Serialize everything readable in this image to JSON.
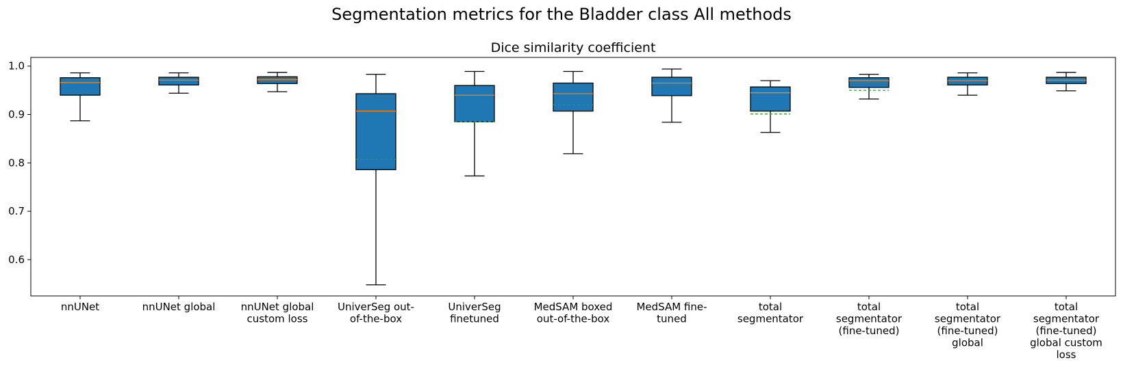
{
  "chart_data": {
    "type": "box",
    "suptitle": "Segmentation metrics for the Bladder class All methods",
    "title": "Dice similarity coefficient",
    "xlabel": "",
    "ylabel": "",
    "ylim": [
      0.525,
      1.018
    ],
    "yticks": [
      "0.6",
      "0.7",
      "0.8",
      "0.9",
      "1.0"
    ],
    "grid": false,
    "colors": {
      "box_fill": "#1f77b4",
      "median": "#ff7f0e",
      "mean": "#2ca02c",
      "line": "#000000"
    },
    "categories": [
      {
        "lines": [
          "nnUNet"
        ],
        "whisker_low": 0.887,
        "q1": 0.94,
        "median": 0.966,
        "q3": 0.976,
        "whisker_high": 0.986,
        "mean": null
      },
      {
        "lines": [
          "nnUNet global"
        ],
        "whisker_low": 0.944,
        "q1": 0.961,
        "median": 0.971,
        "q3": 0.977,
        "whisker_high": 0.986,
        "mean": null
      },
      {
        "lines": [
          "nnUNet global",
          "custom loss"
        ],
        "whisker_low": 0.947,
        "q1": 0.964,
        "median": 0.972,
        "q3": 0.978,
        "whisker_high": 0.987,
        "mean": null
      },
      {
        "lines": [
          "UniverSeg out-",
          "of-the-box"
        ],
        "whisker_low": 0.548,
        "q1": 0.786,
        "median": 0.907,
        "q3": 0.943,
        "whisker_high": 0.983,
        "mean": 0.807
      },
      {
        "lines": [
          "UniverSeg",
          "finetuned"
        ],
        "whisker_low": 0.773,
        "q1": 0.885,
        "median": 0.94,
        "q3": 0.96,
        "whisker_high": 0.989,
        "mean": 0.885
      },
      {
        "lines": [
          "MedSAM boxed",
          "out-of-the-box"
        ],
        "whisker_low": 0.819,
        "q1": 0.907,
        "median": 0.943,
        "q3": 0.965,
        "whisker_high": 0.989,
        "mean": 0.92
      },
      {
        "lines": [
          "MedSAM fine-",
          "tuned"
        ],
        "whisker_low": 0.884,
        "q1": 0.939,
        "median": 0.965,
        "q3": 0.977,
        "whisker_high": 0.994,
        "mean": null
      },
      {
        "lines": [
          "total",
          "segmentator"
        ],
        "whisker_low": 0.863,
        "q1": 0.907,
        "median": 0.945,
        "q3": 0.957,
        "whisker_high": 0.97,
        "mean": 0.901
      },
      {
        "lines": [
          "total",
          "segmentator",
          "(fine-tuned)"
        ],
        "whisker_low": 0.932,
        "q1": 0.956,
        "median": 0.97,
        "q3": 0.976,
        "whisker_high": 0.983,
        "mean": 0.95
      },
      {
        "lines": [
          "total",
          "segmentator",
          "(fine-tuned)",
          "global"
        ],
        "whisker_low": 0.94,
        "q1": 0.961,
        "median": 0.97,
        "q3": 0.977,
        "whisker_high": 0.986,
        "mean": null
      },
      {
        "lines": [
          "total",
          "segmentator",
          "(fine-tuned)",
          "global custom",
          "loss"
        ],
        "whisker_low": 0.949,
        "q1": 0.964,
        "median": 0.971,
        "q3": 0.977,
        "whisker_high": 0.987,
        "mean": null
      }
    ]
  }
}
